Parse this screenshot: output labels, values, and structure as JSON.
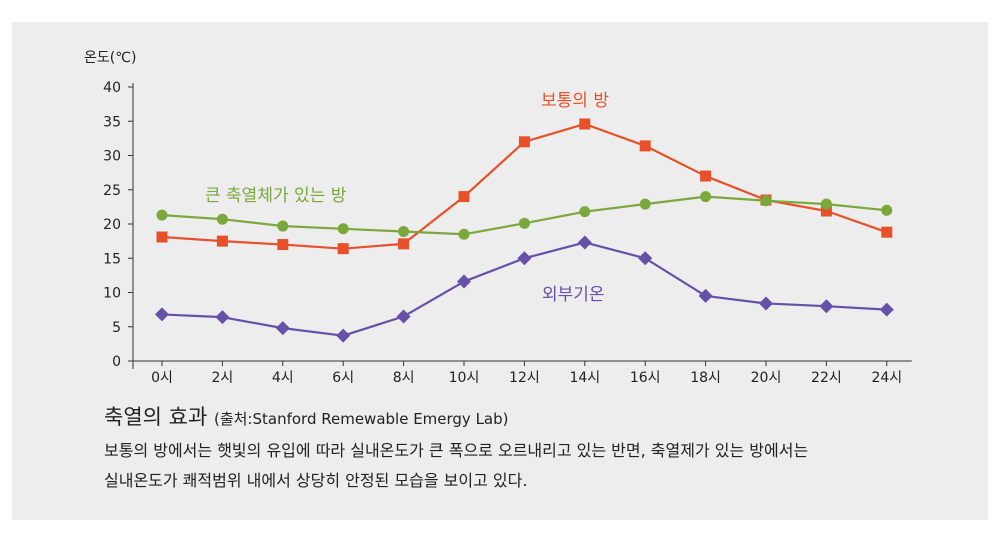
{
  "chart_data": {
    "type": "line",
    "ylabel": "온도(℃)",
    "xlabel": "",
    "ylim": [
      0,
      40
    ],
    "yticks": [
      0,
      5,
      10,
      15,
      20,
      25,
      30,
      35,
      40
    ],
    "categories": [
      "0시",
      "2시",
      "4시",
      "6시",
      "8시",
      "10시",
      "12시",
      "14시",
      "16시",
      "18시",
      "20시",
      "22시",
      "24시"
    ],
    "grid": false,
    "series": [
      {
        "name": "보통의 방",
        "color": "#e8502a",
        "marker": "square",
        "values": [
          18.1,
          17.5,
          17.0,
          16.4,
          17.1,
          24.0,
          32.0,
          34.6,
          31.4,
          27.0,
          23.5,
          21.9,
          18.8
        ]
      },
      {
        "name": "큰 축열체가 있는 방",
        "color": "#7aa83a",
        "marker": "circle",
        "values": [
          21.3,
          20.7,
          19.7,
          19.3,
          18.9,
          18.5,
          20.1,
          21.8,
          22.9,
          24.0,
          23.4,
          22.9,
          22.0
        ]
      },
      {
        "name": "외부기온",
        "color": "#6650a8",
        "marker": "diamond",
        "values": [
          6.8,
          6.4,
          4.8,
          3.7,
          6.5,
          11.6,
          15.0,
          17.3,
          15.0,
          9.5,
          8.4,
          8.0,
          7.5
        ]
      }
    ]
  },
  "caption": {
    "title": "축열의 효과",
    "source": "(출처:Stanford Remewable Emergy Lab)",
    "line1": "보통의 방에서는 햇빛의 유입에 따라 실내온도가 큰 폭으로 오르내리고 있는 반면, 축열제가 있는 방에서는",
    "line2": "실내온도가 쾌적범위 내에서 상당히 안정된 모습을 보이고 있다."
  }
}
